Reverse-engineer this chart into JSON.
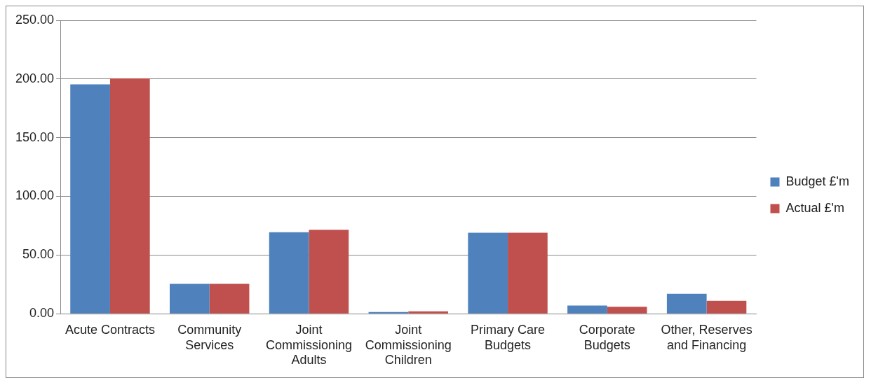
{
  "chart_data": {
    "type": "bar",
    "categories": [
      "Acute Contracts",
      "Community Services",
      "Joint Commissioning Adults",
      "Joint Commissioning Children",
      "Primary Care Budgets",
      "Corporate Budgets",
      "Other, Reserves and Financing"
    ],
    "series": [
      {
        "name": "Budget £'m",
        "color": "#4f81bd",
        "values": [
          195.5,
          25.5,
          69.5,
          1.5,
          69,
          7,
          17
        ]
      },
      {
        "name": "Actual £'m",
        "color": "#c0504d",
        "values": [
          200.5,
          25.5,
          71.5,
          2,
          69,
          6,
          11
        ]
      }
    ],
    "ylim": [
      0,
      250
    ],
    "yticks": [
      {
        "value": 0,
        "label": "0.00"
      },
      {
        "value": 50,
        "label": "50.00"
      },
      {
        "value": 100,
        "label": "100.00"
      },
      {
        "value": 150,
        "label": "150.00"
      },
      {
        "value": 200,
        "label": "200.00"
      },
      {
        "value": 250,
        "label": "250.00"
      }
    ],
    "grid": "y",
    "legend": "right"
  }
}
